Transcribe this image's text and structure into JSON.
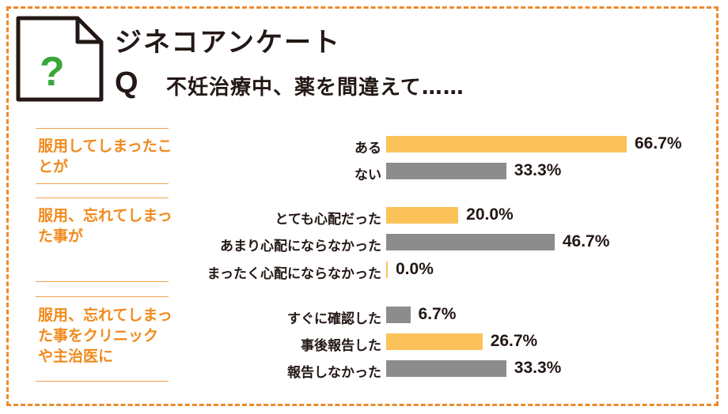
{
  "header": {
    "title": "ジネコアンケート",
    "q_mark": "Q",
    "question": "不妊治療中、薬を間違えて……",
    "icon_text": "?"
  },
  "colors": {
    "accent": "#f08a1c",
    "frame": "#ee8a2a",
    "yellow": "#fbc25a",
    "gray": "#8c8c8c",
    "icon_green": "#3aa63a"
  },
  "chart_data": {
    "type": "bar",
    "orientation": "horizontal",
    "unit": "%",
    "groups": [
      {
        "label": "服用してしまったことが",
        "items": [
          {
            "category": "ある",
            "value": 66.7,
            "value_label": "66.7%",
            "color": "yellow"
          },
          {
            "category": "ない",
            "value": 33.3,
            "value_label": "33.3%",
            "color": "gray"
          }
        ]
      },
      {
        "label": "服用、忘れてしまった事が",
        "items": [
          {
            "category": "とても心配だった",
            "value": 20.0,
            "value_label": "20.0%",
            "color": "yellow"
          },
          {
            "category": "あまり心配にならなかった",
            "value": 46.7,
            "value_label": "46.7%",
            "color": "gray"
          },
          {
            "category": "まったく心配にならなかった",
            "value": 0.0,
            "value_label": "0.0%",
            "color": "yellow"
          }
        ]
      },
      {
        "label": "服用、忘れてしまった事をクリニックや主治医に",
        "items": [
          {
            "category": "すぐに確認した",
            "value": 6.7,
            "value_label": "6.7%",
            "color": "gray"
          },
          {
            "category": "事後報告した",
            "value": 26.7,
            "value_label": "26.7%",
            "color": "yellow"
          },
          {
            "category": "報告しなかった",
            "value": 33.3,
            "value_label": "33.3%",
            "color": "gray"
          }
        ]
      }
    ]
  }
}
